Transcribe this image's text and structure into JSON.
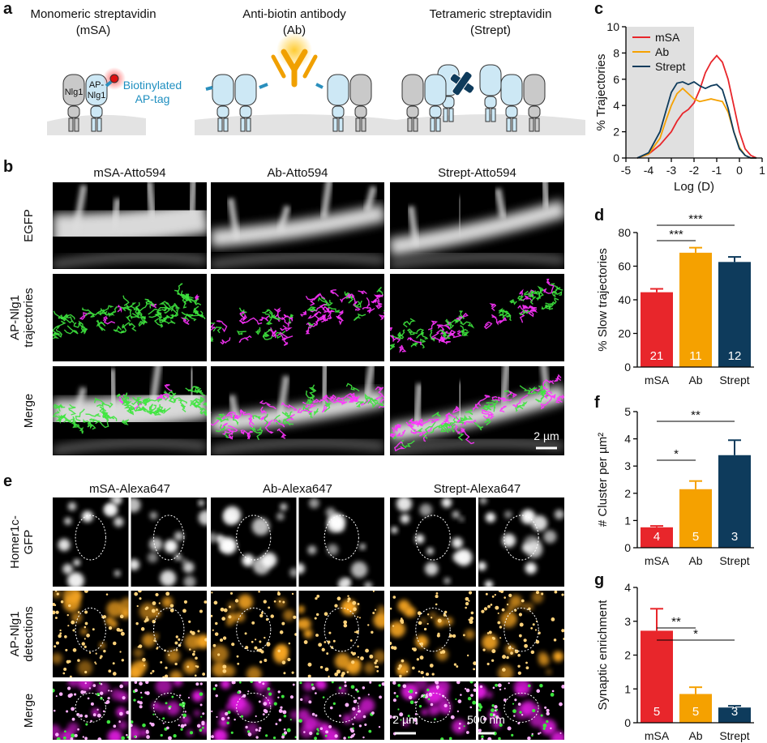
{
  "panel_labels": [
    "a",
    "b",
    "c",
    "d",
    "e",
    "f",
    "g"
  ],
  "panel_a": {
    "titles": [
      [
        "Monomeric streptavidin",
        "(mSA)"
      ],
      [
        "Anti-biotin antibody",
        "(Ab)"
      ],
      [
        "Tetrameric streptavidin",
        "(Strept)"
      ]
    ],
    "nlg1": "Nlg1",
    "ap_nlg1": [
      "AP-",
      "Nlg1"
    ],
    "biotin_label": [
      "Biotinylated",
      "AP-tag"
    ]
  },
  "panel_b": {
    "columns": [
      "mSA-Atto594",
      "Ab-Atto594",
      "Strept-Atto594"
    ],
    "rows": [
      [
        "EGFP"
      ],
      [
        "AP-Nlg1",
        "trajectories"
      ],
      [
        "Merge"
      ]
    ],
    "scale_bar": "2 µm"
  },
  "panel_e": {
    "columns": [
      "mSA-Alexa647",
      "Ab-Alexa647",
      "Strept-Alexa647"
    ],
    "rows": [
      [
        "Homer1c-",
        "GFP"
      ],
      [
        "AP-Nlg1",
        "detections"
      ],
      [
        "Merge"
      ]
    ],
    "scale_bars": [
      "2 µm",
      "500 nm"
    ]
  },
  "chart_data": [
    {
      "type": "line",
      "x_label": "Log (D)",
      "y_label": "% Trajectories",
      "x": [
        -4.5,
        -4,
        -3.5,
        -3.25,
        -3,
        -2.75,
        -2.5,
        -2.25,
        -2,
        -1.75,
        -1.5,
        -1.25,
        -1,
        -0.75,
        -0.5,
        -0.25,
        0,
        0.25,
        0.5,
        0.75
      ],
      "series": [
        {
          "name": "mSA",
          "color": "#e8262b",
          "values": [
            0,
            0.3,
            1.0,
            1.5,
            2.0,
            2.8,
            3.4,
            3.7,
            4.2,
            5.2,
            6.5,
            7.3,
            7.8,
            7.3,
            6.0,
            4.0,
            2.0,
            0.7,
            0.2,
            0
          ]
        },
        {
          "name": "Ab",
          "color": "#f5a100",
          "values": [
            0,
            0.3,
            1.5,
            2.8,
            4.0,
            4.9,
            5.3,
            4.9,
            4.5,
            4.3,
            4.4,
            4.5,
            4.4,
            4.3,
            3.5,
            2.0,
            0.8,
            0.2,
            0,
            0
          ]
        },
        {
          "name": "Strept",
          "color": "#0e3b5c",
          "values": [
            0,
            0.4,
            2.0,
            3.5,
            5.0,
            5.7,
            5.8,
            5.6,
            5.8,
            5.5,
            5.3,
            5.5,
            5.6,
            5.2,
            3.8,
            2.0,
            0.7,
            0.2,
            0,
            0
          ]
        }
      ],
      "xlim": [
        -5,
        1
      ],
      "xticks": [
        -5,
        -4,
        -3,
        -2,
        -1,
        0,
        1
      ],
      "ylim": [
        0,
        10
      ],
      "yticks": [
        0,
        2,
        4,
        6,
        8,
        10
      ],
      "shaded_range": [
        -5,
        -2
      ],
      "legend": "upper left"
    },
    {
      "type": "bar",
      "y_label": "% Slow trajectories",
      "categories": [
        "mSA",
        "Ab",
        "Strept"
      ],
      "values": [
        44.5,
        68,
        62.5
      ],
      "errors": [
        2,
        3,
        3
      ],
      "n": [
        21,
        11,
        12
      ],
      "colors": [
        "#e8262b",
        "#f5a100",
        "#0e3b5c"
      ],
      "ylim": [
        0,
        80
      ],
      "yticks": [
        0,
        20,
        40,
        60,
        80
      ],
      "significance": [
        {
          "pair": [
            "mSA",
            "Ab"
          ],
          "label": "***"
        },
        {
          "pair": [
            "mSA",
            "Strept"
          ],
          "label": "***"
        }
      ]
    },
    {
      "type": "bar",
      "y_label": "# Cluster per µm²",
      "categories": [
        "mSA",
        "Ab",
        "Strept"
      ],
      "values": [
        0.75,
        2.15,
        3.4
      ],
      "errors": [
        0.05,
        0.3,
        0.55
      ],
      "n": [
        4,
        5,
        3
      ],
      "colors": [
        "#e8262b",
        "#f5a100",
        "#0e3b5c"
      ],
      "ylim": [
        0,
        5
      ],
      "yticks": [
        0,
        1,
        2,
        3,
        4,
        5
      ],
      "significance": [
        {
          "pair": [
            "mSA",
            "Ab"
          ],
          "label": "*"
        },
        {
          "pair": [
            "mSA",
            "Strept"
          ],
          "label": "**"
        }
      ]
    },
    {
      "type": "bar",
      "y_label": "Synaptic enrichment",
      "categories": [
        "mSA",
        "Ab",
        "Strept"
      ],
      "values": [
        2.72,
        0.85,
        0.45
      ],
      "errors": [
        0.65,
        0.2,
        0.05
      ],
      "n": [
        5,
        5,
        3
      ],
      "colors": [
        "#e8262b",
        "#f5a100",
        "#0e3b5c"
      ],
      "ylim": [
        0,
        4
      ],
      "yticks": [
        0,
        1,
        2,
        3,
        4
      ],
      "significance": [
        {
          "pair": [
            "mSA",
            "Ab"
          ],
          "label": "**"
        },
        {
          "pair": [
            "mSA",
            "Strept"
          ],
          "label": "*"
        }
      ]
    }
  ]
}
